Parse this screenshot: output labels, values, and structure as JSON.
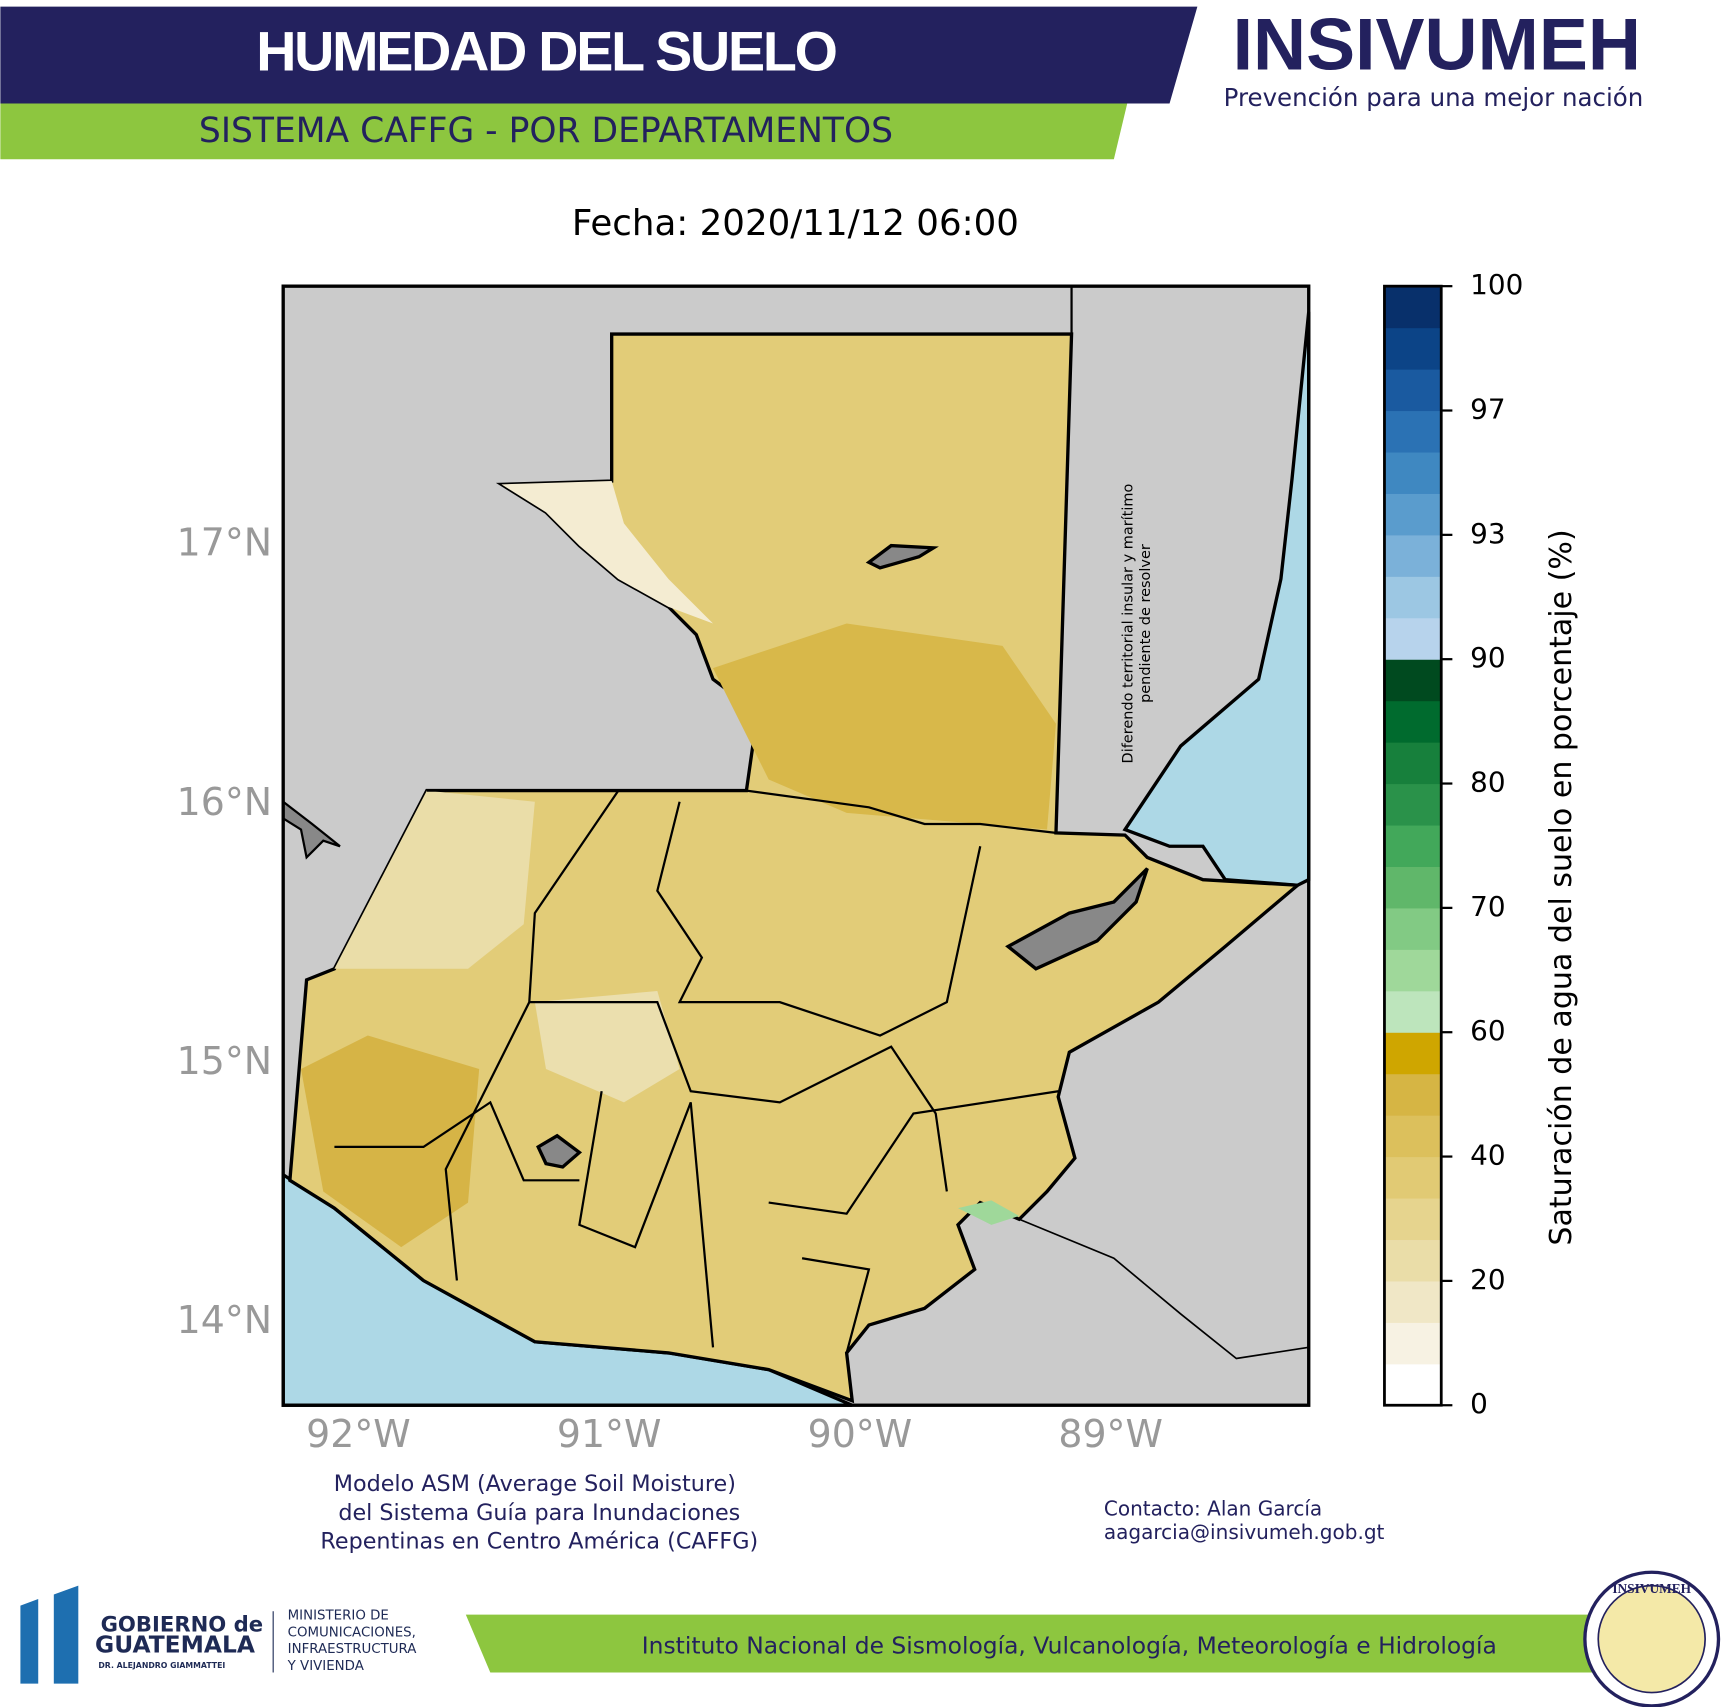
{
  "header": {
    "title": "HUMEDAD DEL SUELO",
    "subtitle": "SISTEMA CAFFG - POR DEPARTAMENTOS",
    "brand": "INSIVUMEH",
    "tagline": "Prevención para una mejor nación"
  },
  "chart_data": {
    "type": "map",
    "title": "Fecha: 2020/11/12  06:00",
    "xlim": [
      -92.3,
      -88.21
    ],
    "ylim": [
      13.68,
      18.0
    ],
    "xticks": [
      {
        "value": -92,
        "label": "92°W"
      },
      {
        "value": -91,
        "label": "91°W"
      },
      {
        "value": -90,
        "label": "90°W"
      },
      {
        "value": -89,
        "label": "89°W"
      }
    ],
    "yticks": [
      {
        "value": 14,
        "label": "14°N"
      },
      {
        "value": 15,
        "label": "15°N"
      },
      {
        "value": 16,
        "label": "16°N"
      },
      {
        "value": 17,
        "label": "17°N"
      }
    ],
    "annotation": [
      "Diferendo territorial insular y marítimo",
      "pendiente de resolver"
    ],
    "colorbar": {
      "label": "Saturación de agua del suelo en porcentaje (%)",
      "ticks": [
        0,
        20,
        40,
        60,
        70,
        80,
        90,
        93,
        97,
        100
      ],
      "colors": [
        "#ffffff",
        "#f7f2e3",
        "#f0e7c6",
        "#eadda8",
        "#e6d48e",
        "#e1ca74",
        "#dcc05c",
        "#d6b544",
        "#cfa600",
        "#bde5bc",
        "#9fd89a",
        "#82ca84",
        "#60b76a",
        "#42a85a",
        "#2a924a",
        "#17803c",
        "#006b2e",
        "#004a1f",
        "#b7d3ec",
        "#9cc7e3",
        "#7bb1d9",
        "#5a9ccd",
        "#3f88c1",
        "#2b72b4",
        "#1a5aa0",
        "#0c4487",
        "#08306b"
      ]
    }
  },
  "notes": {
    "model": [
      "Modelo ASM (Average Soil Moisture)",
      "del Sistema Guía para Inundaciones",
      "Repentinas en Centro América (CAFFG)"
    ],
    "contact": [
      "Contacto: Alan García",
      "aagarcia@insivumeh.gob.gt"
    ]
  },
  "footer": {
    "government": [
      "GOBIERNO de",
      "GUATEMALA",
      "DR. ALEJANDRO GIAMMATTEI"
    ],
    "ministry": [
      "MINISTERIO DE",
      "COMUNICACIONES,",
      "INFRAESTRUCTURA",
      "Y VIVIENDA"
    ],
    "institute": "Instituto Nacional de Sismología, Vulcanología, Meteorología e Hidrología",
    "seal": "INSIVUMEH"
  }
}
